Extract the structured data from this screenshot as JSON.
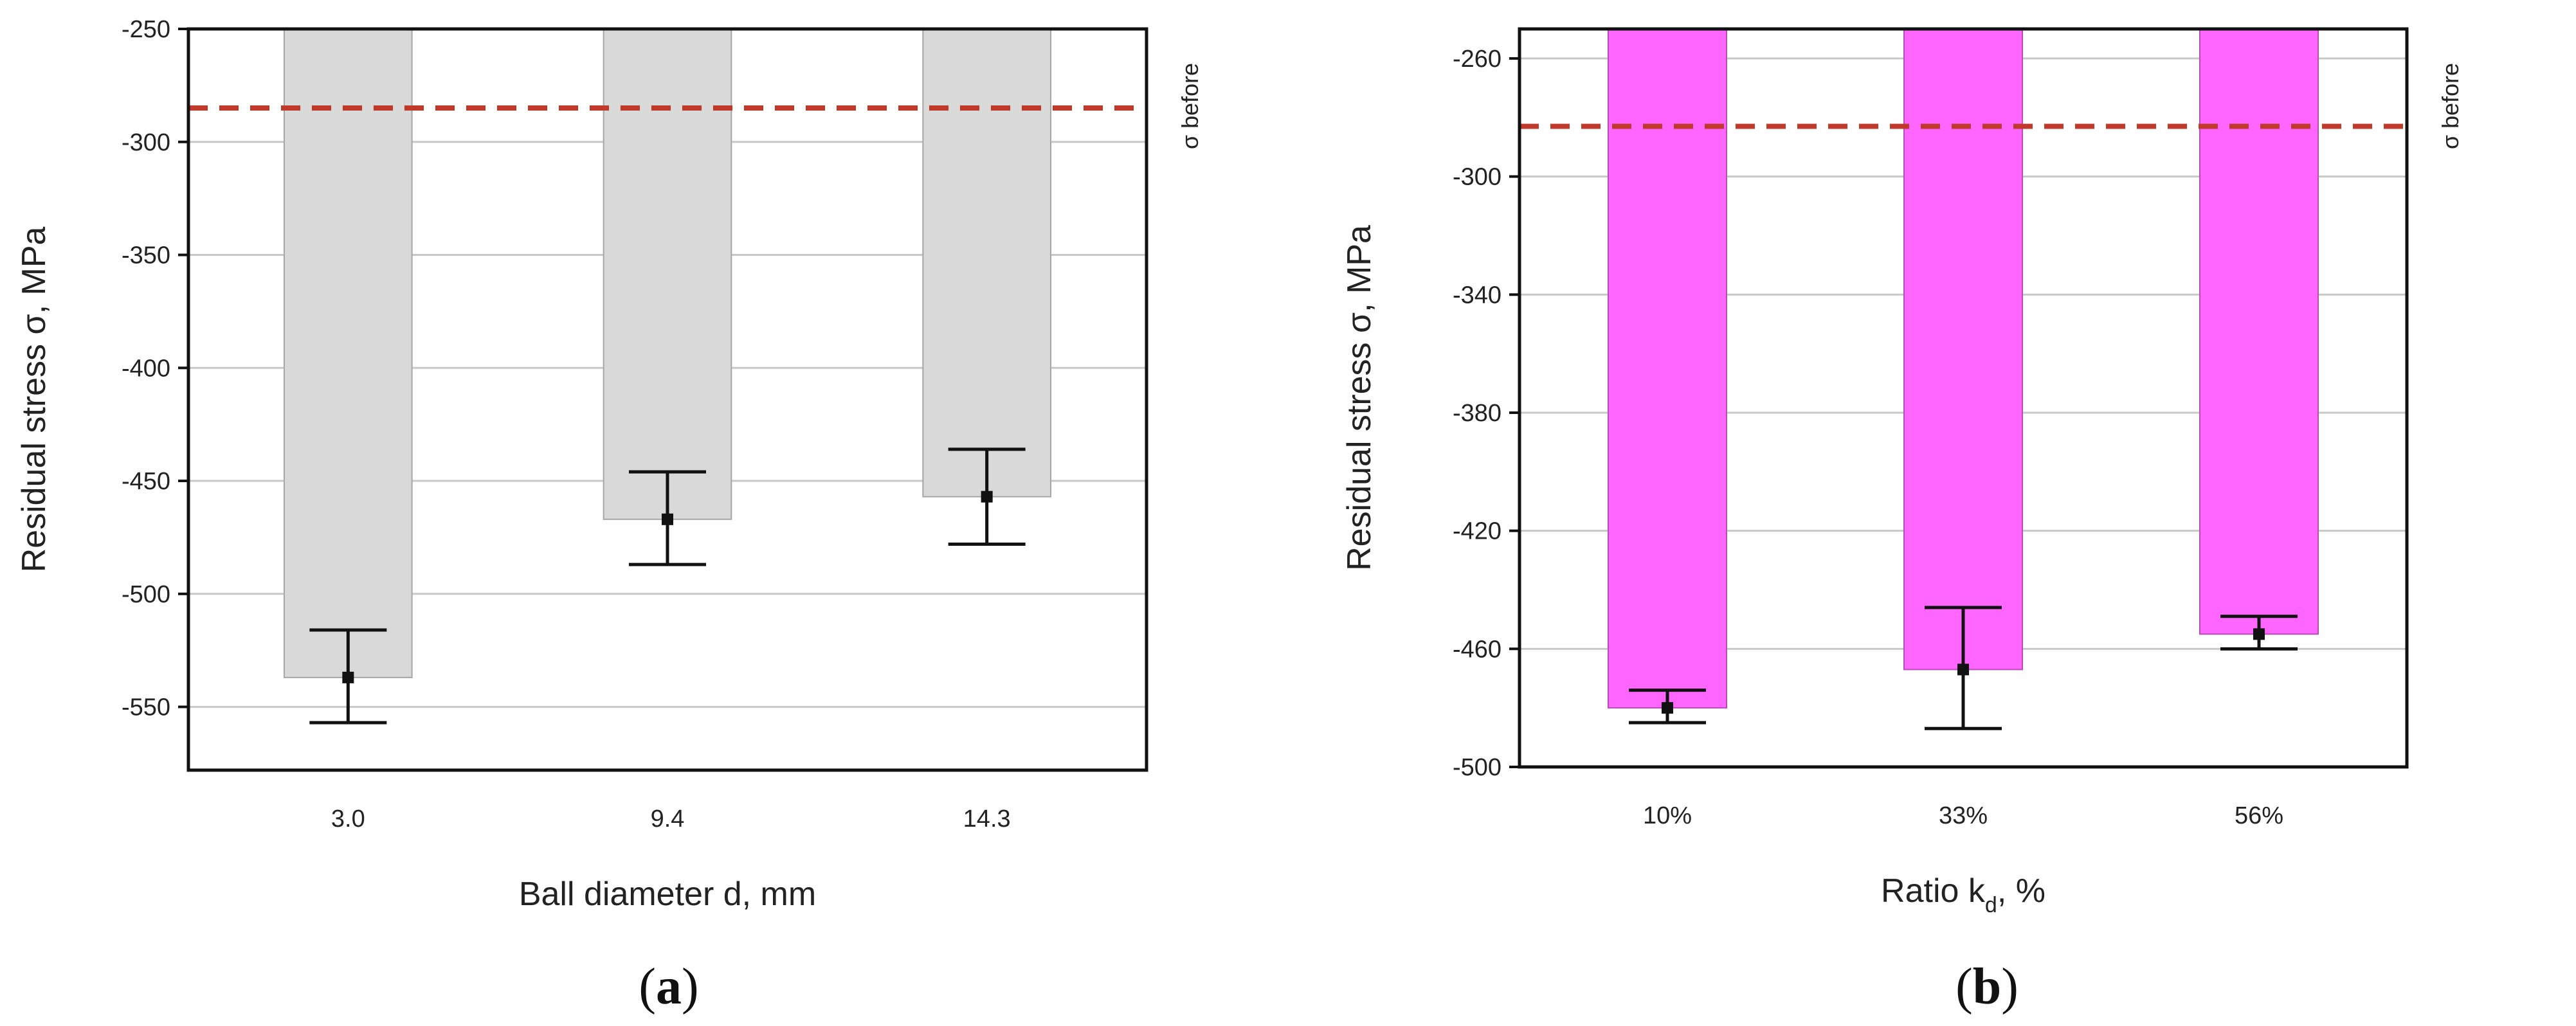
{
  "chart_data": [
    {
      "type": "bar",
      "panel_label": "a",
      "xlabel": "Ball diameter d, mm",
      "ylabel": "Residual stress σ, MPa",
      "categories": [
        "3.0",
        "9.4",
        "14.3"
      ],
      "values": [
        -537,
        -467,
        -457
      ],
      "error_low": [
        -557,
        -487,
        -478
      ],
      "error_high": [
        -516,
        -446,
        -436
      ],
      "ylim": [
        -578,
        -250
      ],
      "yticks": [
        -250,
        -300,
        -350,
        -400,
        -450,
        -500,
        -550
      ],
      "reference_line": {
        "value": -285,
        "label": "σ before",
        "color": "#c0392b"
      },
      "bar_color": "#d9d9d9",
      "bar_edge_color": "#a6a6a6",
      "grid": true
    },
    {
      "type": "bar",
      "panel_label": "b",
      "xlabel_main": "Ratio k",
      "xlabel_sub": "d",
      "xlabel_tail": ", %",
      "ylabel": "Residual stress σ, MPa",
      "categories": [
        "10%",
        "33%",
        "56%"
      ],
      "values": [
        -480,
        -467,
        -455
      ],
      "error_low": [
        -485,
        -487,
        -460
      ],
      "error_high": [
        -474,
        -446,
        -449
      ],
      "ylim": [
        -500,
        -250
      ],
      "yticks": [
        -260,
        -300,
        -340,
        -380,
        -420,
        -460,
        -500
      ],
      "reference_line": {
        "value": -283,
        "label": "σ before",
        "color": "#c0392b"
      },
      "bar_color": "#ff66ff",
      "bar_edge_color": "#b84db8",
      "grid": true
    }
  ],
  "captions": {
    "a": "a",
    "b": "b"
  }
}
